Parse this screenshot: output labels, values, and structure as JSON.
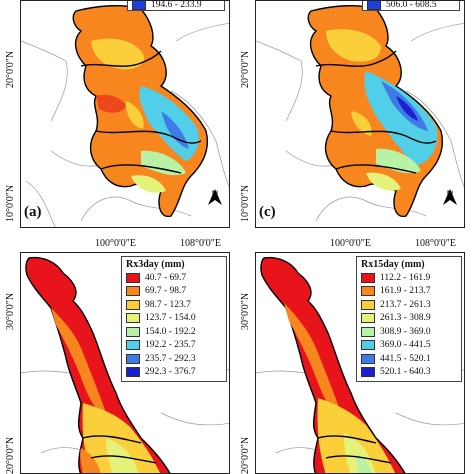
{
  "panels": {
    "a": {
      "letter": "(a)"
    },
    "b": {
      "letter": ""
    },
    "c": {
      "letter": "(c)"
    },
    "d": {
      "letter": ""
    }
  },
  "lat_labels": {
    "top_20": "20°0'0\"N",
    "top_10": "10°0'0\"N",
    "bottom_30": "30°0'0\"N",
    "bottom_20": "20°0'0\"N"
  },
  "lon_labels": {
    "lon_100": "100°0'0\"E",
    "lon_108": "108°0'0\"E"
  },
  "north_label": "N",
  "legend_a_partial": {
    "value": "194.6 - 233.9",
    "color": "#1d3fe0"
  },
  "legend_c_partial": {
    "value": "506.0 - 608.5",
    "color": "#1d3fe0"
  },
  "legend_b": {
    "title": "Rx3day (mm)",
    "items": [
      {
        "range": "40.7 - 69.7",
        "color": "#e8141b"
      },
      {
        "range": "69.7 - 98.7",
        "color": "#f7861e"
      },
      {
        "range": "98.7 - 123.7",
        "color": "#fbcf3a"
      },
      {
        "range": "123.7 - 154.0",
        "color": "#e4f27a"
      },
      {
        "range": "154.0 - 192.2",
        "color": "#b7f2a6"
      },
      {
        "range": "192.2 - 235.7",
        "color": "#52cfe8"
      },
      {
        "range": "235.7 - 292.3",
        "color": "#3f7be6"
      },
      {
        "range": "292.3 - 376.7",
        "color": "#1a1fd0"
      }
    ]
  },
  "legend_d": {
    "title": "Rx15day (mm)",
    "items": [
      {
        "range": "112.2 - 161.9",
        "color": "#e8141b"
      },
      {
        "range": "161.9 - 213.7",
        "color": "#f7861e"
      },
      {
        "range": "213.7 - 261.3",
        "color": "#fbcf3a"
      },
      {
        "range": "261.3 - 308.9",
        "color": "#e4f27a"
      },
      {
        "range": "308.9 - 369.0",
        "color": "#b7f2a6"
      },
      {
        "range": "369.0 - 441.5",
        "color": "#52cfe8"
      },
      {
        "range": "441.5 - 520.1",
        "color": "#3f7be6"
      },
      {
        "range": "520.1 - 640.3",
        "color": "#1a1fd0"
      }
    ]
  }
}
